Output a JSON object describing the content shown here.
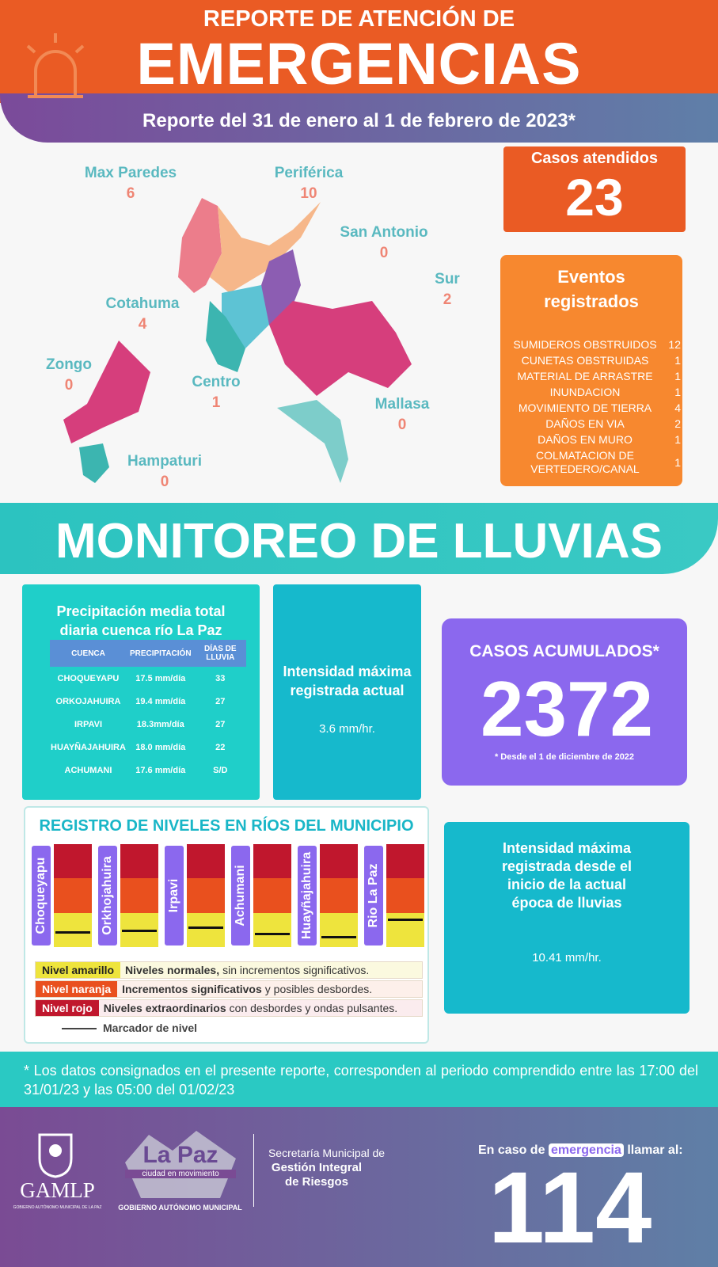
{
  "header": {
    "title_top": "REPORTE DE ATENCIÓN DE",
    "title": "EMERGENCIAS",
    "subtitle": "Reporte del 31 de enero al 1 de febrero de 2023*"
  },
  "map": {
    "districts": [
      {
        "name": "Max Paredes",
        "cases": 6
      },
      {
        "name": "Periférica",
        "cases": 10
      },
      {
        "name": "San Antonio",
        "cases": 0
      },
      {
        "name": "Sur",
        "cases": 2
      },
      {
        "name": "Cotahuma",
        "cases": 4
      },
      {
        "name": "Zongo",
        "cases": 0
      },
      {
        "name": "Centro",
        "cases": 1
      },
      {
        "name": "Mallasa",
        "cases": 0
      },
      {
        "name": "Hampaturi",
        "cases": 0
      }
    ]
  },
  "cases": {
    "label": "Casos atendidos",
    "value": 23
  },
  "events": {
    "title": "Eventos registrados",
    "rows": [
      {
        "label": "SUMIDEROS OBSTRUIDOS",
        "count": 12
      },
      {
        "label": "CUNETAS OBSTRUIDAS",
        "count": 1
      },
      {
        "label": "MATERIAL DE ARRASTRE",
        "count": 1
      },
      {
        "label": "INUNDACION",
        "count": 1
      },
      {
        "label": "MOVIMIENTO DE TIERRA",
        "count": 4
      },
      {
        "label": "DAÑOS EN VIA",
        "count": 2
      },
      {
        "label": "DAÑOS EN MURO",
        "count": 1
      },
      {
        "label": "COLMATACION DE VERTEDERO/CANAL",
        "count": 1
      }
    ]
  },
  "rain": {
    "title": "MONITOREO DE LLUVIAS",
    "basin": {
      "title": "Precipitación media total diaria cuenca río La Paz",
      "columns": [
        "CUENCA",
        "PRECIPITACIÓN",
        "DÍAS DE LLUVIA"
      ],
      "rows": [
        [
          "CHOQUEYAPU",
          "17.5 mm/día",
          33
        ],
        [
          "ORKOJAHUIRA",
          "19.4 mm/día",
          27
        ],
        [
          "IRPAVI",
          "18.3mm/día",
          27
        ],
        [
          "HUAYÑAJAHUIRA",
          "18.0 mm/día",
          22
        ],
        [
          "ACHUMANI",
          "17.6 mm/día",
          "S/D"
        ]
      ]
    },
    "intensity_current": {
      "label": "Intensidad máxima registrada actual",
      "value": "3.6 mm/hr."
    },
    "accumulated": {
      "label": "CASOS ACUMULADOS*",
      "value": 2372,
      "note": "* Desde el 1 de diciembre de 2022"
    },
    "intensity_season": {
      "label": "Intensidad máxima registrada desde el inicio de la actual época de lluvias",
      "value": "10.41 mm/hr."
    }
  },
  "rivers": {
    "title": "REGISTRO DE NIVELES EN RÍOS DEL MUNICIPIO",
    "names": [
      "Choqueyapu",
      "Orkhojahuira",
      "Irpavi",
      "Achumani",
      "Huayñajahuira",
      "Rio La Paz"
    ],
    "legend": [
      {
        "level": "Nivel amarillo",
        "bold": "Niveles normales,",
        "text": "sin incrementos significativos."
      },
      {
        "level": "Nivel naranja",
        "bold": "Incrementos significativos",
        "text": "y posibles desbordes."
      },
      {
        "level": "Nivel rojo",
        "bold": "Niveles extraordinarios",
        "text": "con desbordes y ondas pulsantes."
      }
    ],
    "marker": "Marcador de nivel"
  },
  "footnote": "* Los datos consignados en el presente reporte, corresponden al periodo comprendido entre las 17:00 del 31/01/23 y las 05:00 del 01/02/23",
  "footer": {
    "org": "GAMLP",
    "org_full": "GOBIERNO AUTÓNOMO MUNICIPAL DE LA PAZ",
    "brand": "La Paz",
    "brand_sub": "ciudad en movimiento",
    "brand_gov": "GOBIERNO AUTÓNOMO MUNICIPAL",
    "secretaria": "Secretaría Municipal de",
    "secretaria_bold": "Gestión Integral de Riesgos",
    "call_pre": "En caso de",
    "call_em": "emergencia",
    "call_post": "llamar al:",
    "number": 114
  }
}
